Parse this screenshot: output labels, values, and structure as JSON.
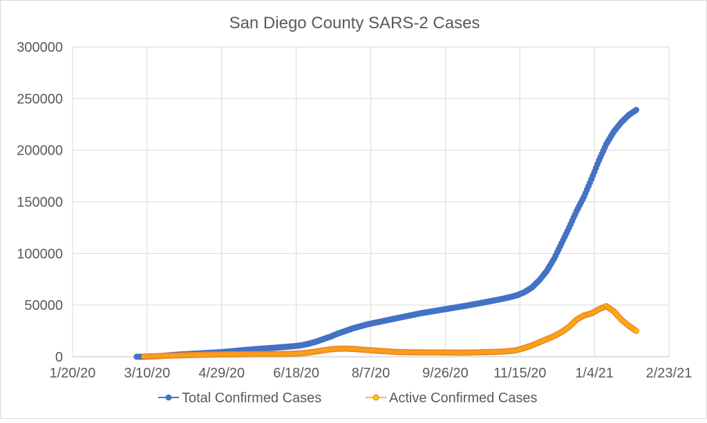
{
  "chart_data": {
    "type": "scatter",
    "title": "San Diego County SARS-2 Cases",
    "xlabel": "",
    "ylabel": "",
    "x_origin_date": "1/20/20",
    "x_unit": "days since 1/20/20",
    "xlim": [
      0,
      400
    ],
    "ylim": [
      0,
      300000
    ],
    "x_ticks": [
      "1/20/20",
      "3/10/20",
      "4/29/20",
      "6/18/20",
      "8/7/20",
      "9/26/20",
      "11/15/20",
      "1/4/21",
      "2/23/21"
    ],
    "y_ticks": [
      "0",
      "50000",
      "100000",
      "150000",
      "200000",
      "250000",
      "300000"
    ],
    "grid": true,
    "legend_position": "bottom",
    "series": [
      {
        "name": "Total Confirmed Cases",
        "color": "#4472c4",
        "x_start": 43,
        "x_step": 5,
        "values": [
          0,
          50,
          300,
          600,
          1200,
          1800,
          2300,
          2700,
          3100,
          3500,
          3900,
          4300,
          4900,
          5500,
          6200,
          6800,
          7400,
          8000,
          8500,
          9000,
          9600,
          10200,
          11000,
          12500,
          14500,
          17000,
          19500,
          22500,
          25000,
          27500,
          29500,
          31500,
          33000,
          34500,
          36000,
          37500,
          39000,
          40500,
          42000,
          43200,
          44400,
          45600,
          46800,
          48000,
          49200,
          50500,
          51800,
          53200,
          54600,
          56000,
          57600,
          59500,
          62500,
          67000,
          74000,
          83000,
          95000,
          110000,
          125000,
          141000,
          155000,
          172000,
          190000,
          206000,
          218000,
          227000,
          234000,
          239000
        ]
      },
      {
        "name": "Active Confirmed Cases",
        "color": "#ffc000",
        "edge_color": "#ed7d31",
        "x_start": 48,
        "x_step": 5,
        "values": [
          200,
          400,
          700,
          1000,
          1200,
          1400,
          1600,
          1800,
          2000,
          2100,
          2200,
          2300,
          2300,
          2400,
          2500,
          2500,
          2600,
          2600,
          2600,
          2700,
          2900,
          3300,
          4000,
          5000,
          6200,
          7200,
          7800,
          7900,
          7600,
          7000,
          6500,
          6000,
          5500,
          5000,
          4600,
          4400,
          4300,
          4300,
          4200,
          4200,
          4200,
          4100,
          4000,
          4000,
          4100,
          4300,
          4500,
          4700,
          5000,
          5500,
          6500,
          8500,
          11000,
          14000,
          17000,
          20000,
          24000,
          29000,
          36000,
          40000,
          42000,
          46000,
          49000,
          44000,
          36000,
          30000,
          25000
        ]
      }
    ]
  }
}
